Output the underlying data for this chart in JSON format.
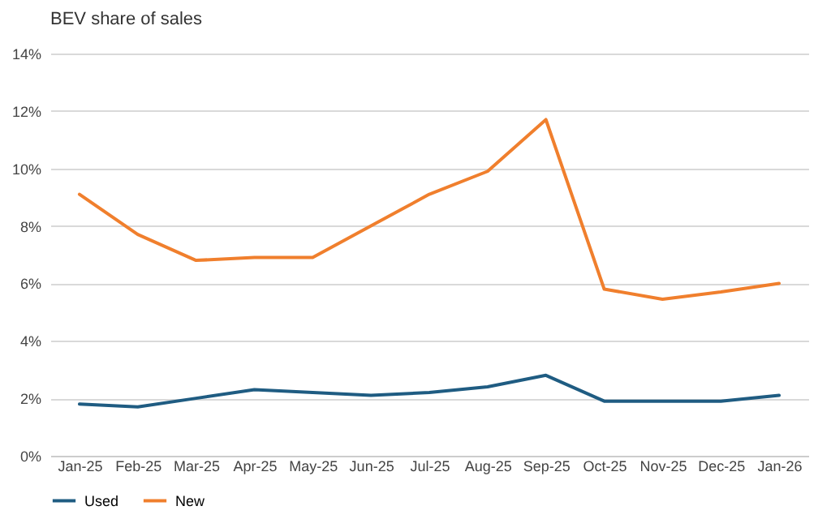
{
  "chart_data": {
    "type": "line",
    "title": "BEV share of sales",
    "categories": [
      "Jan-25",
      "Feb-25",
      "Mar-25",
      "Apr-25",
      "May-25",
      "Jun-25",
      "Jul-25",
      "Aug-25",
      "Sep-25",
      "Oct-25",
      "Nov-25",
      "Dec-25",
      "Jan-26"
    ],
    "series": [
      {
        "name": "Used",
        "color": "#1f5c82",
        "values": [
          1.8,
          1.7,
          2.0,
          2.3,
          2.2,
          2.1,
          2.2,
          2.4,
          2.8,
          1.9,
          1.9,
          1.9,
          2.1
        ]
      },
      {
        "name": "New",
        "color": "#f07f2d",
        "values": [
          9.1,
          7.7,
          6.8,
          6.9,
          6.9,
          8.0,
          9.1,
          9.9,
          11.7,
          5.8,
          5.45,
          5.7,
          6.0
        ]
      }
    ],
    "ylim": [
      0,
      14
    ],
    "yticks": [
      {
        "value": 0,
        "label": "0%"
      },
      {
        "value": 2,
        "label": "2%"
      },
      {
        "value": 4,
        "label": "4%"
      },
      {
        "value": 6,
        "label": "6%"
      },
      {
        "value": 8,
        "label": "8%"
      },
      {
        "value": 10,
        "label": "10%"
      },
      {
        "value": 12,
        "label": "12%"
      },
      {
        "value": 14,
        "label": "14%"
      }
    ],
    "grid": "y",
    "legend": "bottom",
    "marker": "none",
    "line_style": "solid"
  }
}
